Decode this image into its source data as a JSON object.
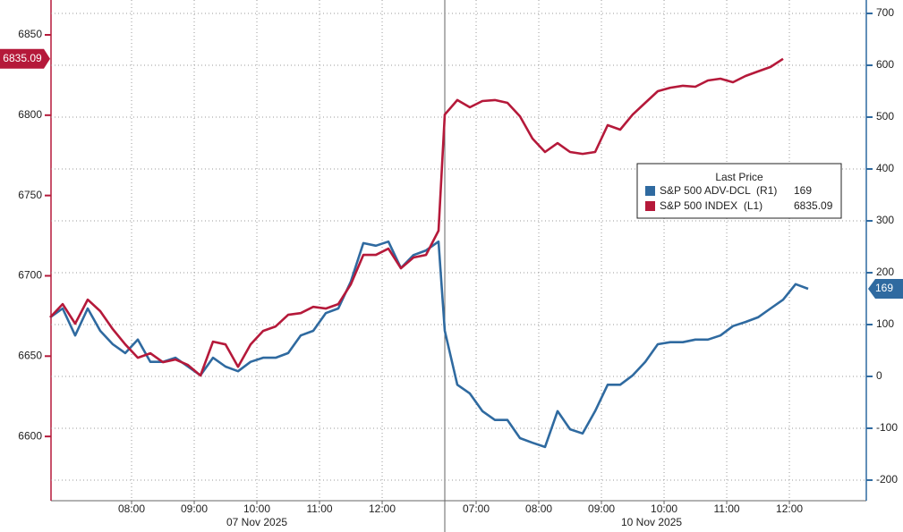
{
  "chart_data": {
    "type": "line",
    "x": [
      6.7,
      6.9,
      7.1,
      7.3,
      7.5,
      7.7,
      7.9,
      8.1,
      8.3,
      8.5,
      8.7,
      8.9,
      9.1,
      9.3,
      9.5,
      9.7,
      9.9,
      10.1,
      10.3,
      10.5,
      10.7,
      10.9,
      11.1,
      11.3,
      11.5,
      11.7,
      11.9,
      12.1,
      12.3,
      12.5,
      12.7,
      12.9,
      13.0,
      13.2,
      13.4,
      13.6,
      13.8,
      14.0,
      14.2,
      14.4,
      14.6,
      14.8,
      15.0,
      15.2,
      15.4,
      15.6,
      15.8,
      16.0,
      16.2,
      16.4,
      16.6,
      16.8,
      17.0,
      17.2,
      17.4,
      17.6,
      17.8,
      18.0,
      18.2,
      18.4,
      18.6,
      18.8
    ],
    "series": [
      {
        "name": "S&P 500 ADV-DCL  (R1)",
        "color": "#2f6aa0",
        "axis": "y2",
        "values": [
          114,
          131,
          79,
          131,
          88,
          62,
          45,
          71,
          28,
          28,
          36,
          19,
          2,
          36,
          19,
          10,
          28,
          36,
          36,
          45,
          79,
          88,
          122,
          131,
          183,
          257,
          252,
          260,
          209,
          234,
          243,
          260,
          88,
          -16,
          -33,
          -67,
          -84,
          -84,
          -119,
          -128,
          -136,
          -67,
          -102,
          -110,
          -67,
          -16,
          -16,
          2,
          28,
          62,
          66,
          66,
          71,
          71,
          79,
          97,
          105,
          114,
          131,
          148,
          178,
          169
        ]
      },
      {
        "name": "S&P 500 INDEX  (L1)",
        "color": "#b5193a",
        "values": [
          6674.1,
          6682.4,
          6670.2,
          6685.2,
          6678.0,
          6666.8,
          6657.3,
          6649.0,
          6651.8,
          6646.2,
          6647.9,
          6644.5,
          6637.9,
          6659.0,
          6657.3,
          6643.4,
          6657.3,
          6665.7,
          6668.5,
          6675.7,
          6676.8,
          6680.7,
          6679.6,
          6682.4,
          6694.7,
          6713.0,
          6713.0,
          6716.9,
          6704.7,
          6711.4,
          6713.0,
          6728.1,
          6800.4,
          6809.4,
          6804.9,
          6808.8,
          6809.4,
          6807.7,
          6799.3,
          6785.4,
          6777.1,
          6782.6,
          6777.1,
          6775.9,
          6777.1,
          6793.8,
          6791.0,
          6800.4,
          6807.7,
          6814.9,
          6817.1,
          6818.3,
          6817.7,
          6821.6,
          6822.7,
          6820.5,
          6824.4,
          6827.2,
          6830.0,
          6835.09,
          null,
          null
        ]
      }
    ],
    "xlim": [
      6.714,
      19.728
    ],
    "xticks": [
      {
        "value": 8,
        "label": "08:00"
      },
      {
        "value": 9,
        "label": "09:00"
      },
      {
        "value": 10,
        "label": "10:00"
      },
      {
        "value": 11,
        "label": "11:00"
      },
      {
        "value": 12,
        "label": "12:00"
      },
      {
        "value": 13.5,
        "label": "07:00"
      },
      {
        "value": 14.5,
        "label": "08:00"
      },
      {
        "value": 15.5,
        "label": "09:00"
      },
      {
        "value": 16.5,
        "label": "10:00"
      },
      {
        "value": 17.5,
        "label": "11:00"
      },
      {
        "value": 18.5,
        "label": "12:00"
      }
    ],
    "date_labels": [
      {
        "value": 10,
        "label": "07 Nov 2025"
      },
      {
        "value": 16.3,
        "label": "10 Nov 2025"
      }
    ],
    "ylim": [
      6560,
      6871.7
    ],
    "yticks": [
      6600,
      6650,
      6700,
      6750,
      6800,
      6850
    ],
    "y2lim": [
      -239.7,
      725.9
    ],
    "y2ticks": [
      -200,
      -100,
      0,
      100,
      200,
      300,
      400,
      500,
      600,
      700
    ],
    "grid": true,
    "legend_title": "Last Price",
    "legend_position": "right"
  }
}
